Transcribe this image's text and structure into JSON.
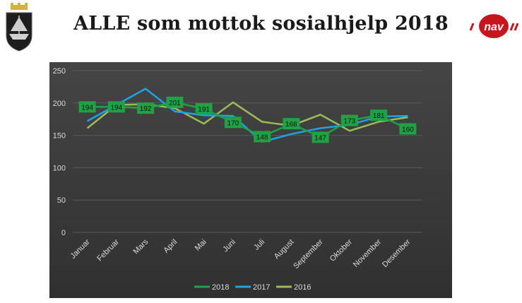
{
  "page": {
    "title": "ALLE som mottok sosialhjelp 2018"
  },
  "logos": {
    "left": "municipal-crest",
    "right_text": "nav"
  },
  "colors": {
    "chart_bg_top": "#454545",
    "chart_bg_bottom": "#303030",
    "series_2018": "#1fa145",
    "series_2017": "#1aa5e6",
    "series_2016": "#9bbb59",
    "label_bg": "#1fa145",
    "axis_text": "#d9d9d9",
    "nav_red": "#c5161d"
  },
  "chart_data": {
    "type": "line",
    "categories": [
      "Januar",
      "Februar",
      "Mars",
      "April",
      "Mai",
      "Juni",
      "Juli",
      "August",
      "September",
      "Oktober",
      "November",
      "Desember"
    ],
    "ylim": [
      0,
      250
    ],
    "yticks": [
      0,
      50,
      100,
      150,
      200,
      250
    ],
    "grid": true,
    "legend_position": "bottom",
    "series": [
      {
        "name": "2018",
        "values": [
          194,
          194,
          192,
          201,
          191,
          170,
          148,
          168,
          147,
          173,
          181,
          160
        ],
        "data_labels": true
      },
      {
        "name": "2017",
        "values": [
          172,
          197,
          222,
          187,
          181,
          180,
          140,
          152,
          161,
          166,
          179,
          180
        ],
        "data_labels": false
      },
      {
        "name": "2016",
        "values": [
          161,
          197,
          198,
          192,
          168,
          201,
          171,
          165,
          182,
          157,
          171,
          178
        ],
        "data_labels": false
      }
    ]
  }
}
